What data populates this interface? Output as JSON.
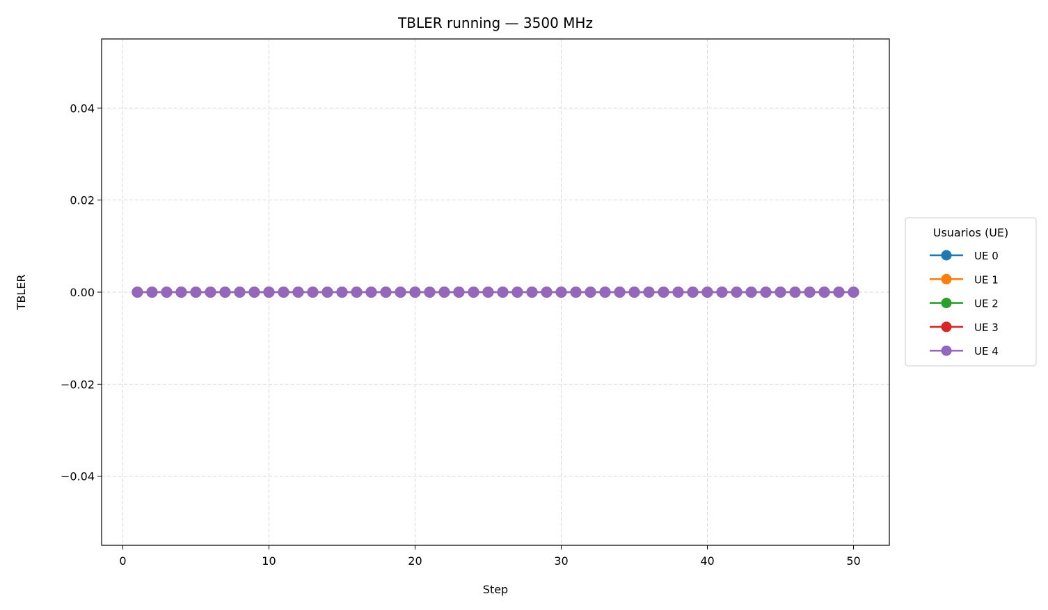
{
  "chart_data": {
    "type": "line",
    "title": "TBLER running — 3500 MHz",
    "xlabel": "Step",
    "ylabel": "TBLER",
    "xlim": [
      -1.45,
      52.45
    ],
    "ylim": [
      -0.055,
      0.055
    ],
    "x_ticks": [
      0,
      10,
      20,
      30,
      40,
      50
    ],
    "x_tick_labels": [
      "0",
      "10",
      "20",
      "30",
      "40",
      "50"
    ],
    "y_ticks": [
      0.04,
      0.02,
      0.0,
      -0.02,
      -0.04
    ],
    "y_tick_labels": [
      "0.04",
      "0.02",
      "0.00",
      "−0.02",
      "−0.04"
    ],
    "grid": true,
    "legend": {
      "title": "Usuarios (UE)",
      "placement": "outside-right"
    },
    "x": [
      1,
      2,
      3,
      4,
      5,
      6,
      7,
      8,
      9,
      10,
      11,
      12,
      13,
      14,
      15,
      16,
      17,
      18,
      19,
      20,
      21,
      22,
      23,
      24,
      25,
      26,
      27,
      28,
      29,
      30,
      31,
      32,
      33,
      34,
      35,
      36,
      37,
      38,
      39,
      40,
      41,
      42,
      43,
      44,
      45,
      46,
      47,
      48,
      49,
      50
    ],
    "series": [
      {
        "name": "UE 0",
        "color": "#1f77b4",
        "values": [
          0,
          0,
          0,
          0,
          0,
          0,
          0,
          0,
          0,
          0,
          0,
          0,
          0,
          0,
          0,
          0,
          0,
          0,
          0,
          0,
          0,
          0,
          0,
          0,
          0,
          0,
          0,
          0,
          0,
          0,
          0,
          0,
          0,
          0,
          0,
          0,
          0,
          0,
          0,
          0,
          0,
          0,
          0,
          0,
          0,
          0,
          0,
          0,
          0,
          0
        ]
      },
      {
        "name": "UE 1",
        "color": "#ff7f0e",
        "values": [
          0,
          0,
          0,
          0,
          0,
          0,
          0,
          0,
          0,
          0,
          0,
          0,
          0,
          0,
          0,
          0,
          0,
          0,
          0,
          0,
          0,
          0,
          0,
          0,
          0,
          0,
          0,
          0,
          0,
          0,
          0,
          0,
          0,
          0,
          0,
          0,
          0,
          0,
          0,
          0,
          0,
          0,
          0,
          0,
          0,
          0,
          0,
          0,
          0,
          0
        ]
      },
      {
        "name": "UE 2",
        "color": "#2ca02c",
        "values": [
          0,
          0,
          0,
          0,
          0,
          0,
          0,
          0,
          0,
          0,
          0,
          0,
          0,
          0,
          0,
          0,
          0,
          0,
          0,
          0,
          0,
          0,
          0,
          0,
          0,
          0,
          0,
          0,
          0,
          0,
          0,
          0,
          0,
          0,
          0,
          0,
          0,
          0,
          0,
          0,
          0,
          0,
          0,
          0,
          0,
          0,
          0,
          0,
          0,
          0
        ]
      },
      {
        "name": "UE 3",
        "color": "#d62728",
        "values": [
          0,
          0,
          0,
          0,
          0,
          0,
          0,
          0,
          0,
          0,
          0,
          0,
          0,
          0,
          0,
          0,
          0,
          0,
          0,
          0,
          0,
          0,
          0,
          0,
          0,
          0,
          0,
          0,
          0,
          0,
          0,
          0,
          0,
          0,
          0,
          0,
          0,
          0,
          0,
          0,
          0,
          0,
          0,
          0,
          0,
          0,
          0,
          0,
          0,
          0
        ]
      },
      {
        "name": "UE 4",
        "color": "#9467bd",
        "values": [
          0,
          0,
          0,
          0,
          0,
          0,
          0,
          0,
          0,
          0,
          0,
          0,
          0,
          0,
          0,
          0,
          0,
          0,
          0,
          0,
          0,
          0,
          0,
          0,
          0,
          0,
          0,
          0,
          0,
          0,
          0,
          0,
          0,
          0,
          0,
          0,
          0,
          0,
          0,
          0,
          0,
          0,
          0,
          0,
          0,
          0,
          0,
          0,
          0,
          0
        ]
      }
    ]
  }
}
